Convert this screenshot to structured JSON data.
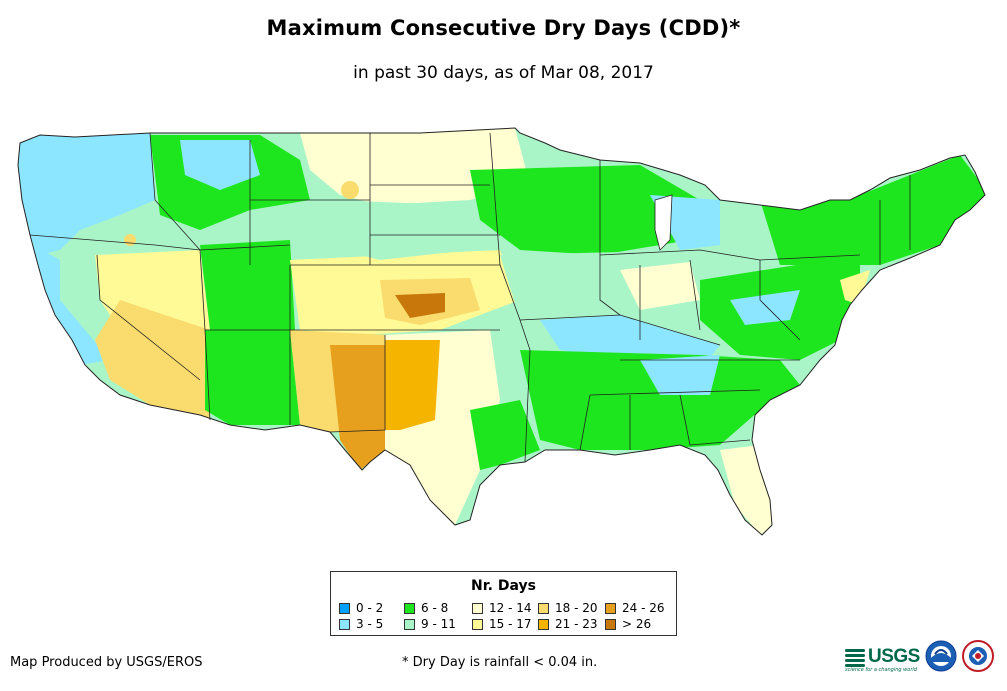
{
  "header": {
    "title": "Maximum Consecutive Dry Days (CDD)*",
    "subtitle": "in past 30 days, as of Mar 08, 2017"
  },
  "legend": {
    "title": "Nr. Days",
    "items": [
      {
        "label": "0 - 2",
        "color": "#00a0ff"
      },
      {
        "label": "3 - 5",
        "color": "#8ce6ff"
      },
      {
        "label": "6 - 8",
        "color": "#1ee61e"
      },
      {
        "label": "9 - 11",
        "color": "#aaf5c8"
      },
      {
        "label": "12 - 14",
        "color": "#ffffd2"
      },
      {
        "label": "15 - 17",
        "color": "#fffa96"
      },
      {
        "label": "18 - 20",
        "color": "#fadc6e"
      },
      {
        "label": "21 - 23",
        "color": "#f5b400"
      },
      {
        "label": "24 - 26",
        "color": "#e6a01e"
      },
      {
        "label": "> 26",
        "color": "#c8780a"
      }
    ]
  },
  "footer": {
    "credit": "Map Produced by USGS/EROS",
    "footnote": "* Dry Day is rainfall < 0.04 in.",
    "usgs_logo_text": "USGS",
    "usgs_tagline": "science for a changing world"
  },
  "colors": {
    "border": "#333333",
    "state_lines": "#222222"
  }
}
